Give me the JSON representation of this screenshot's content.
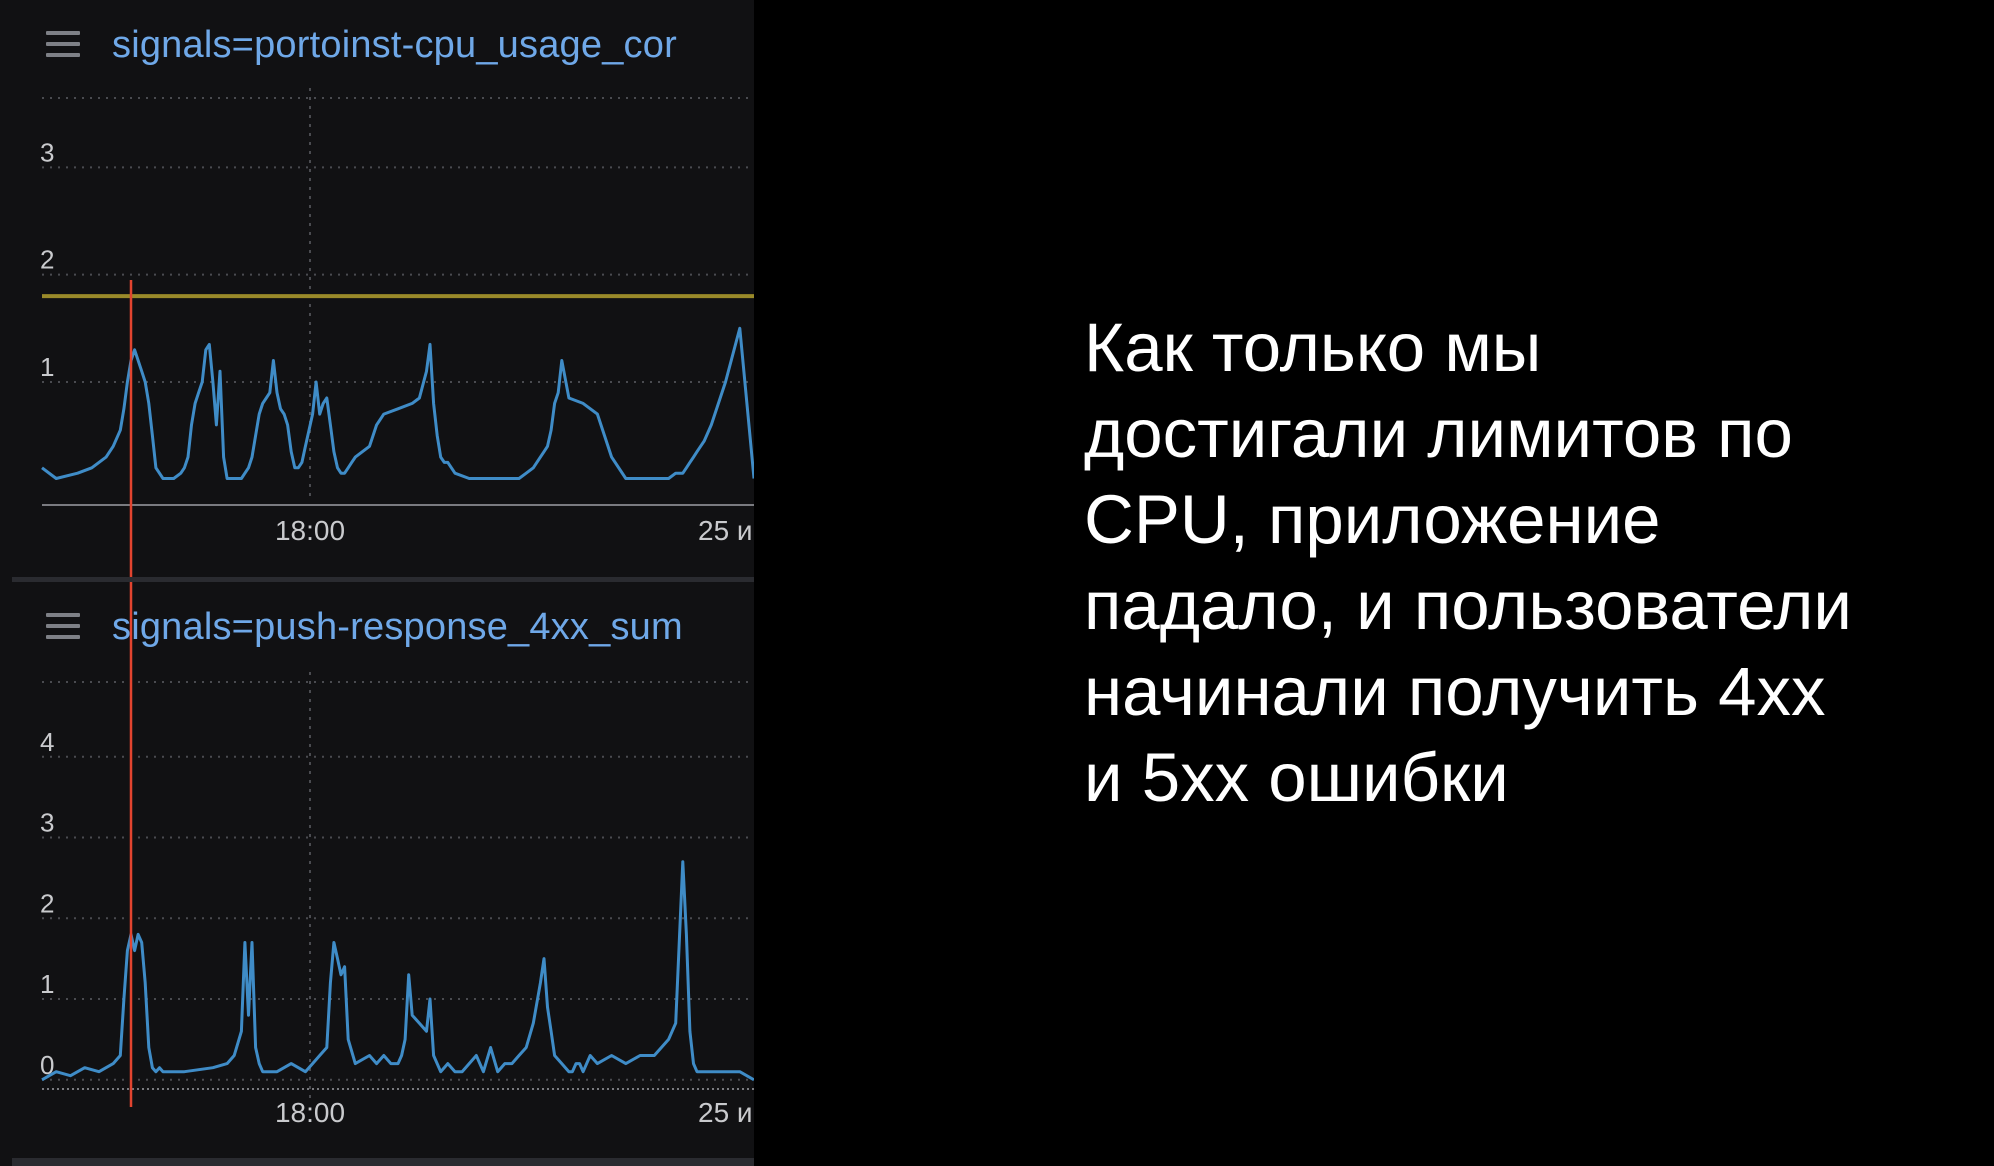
{
  "panels": [
    {
      "title": "signals=portoinst-cpu_usage_cor"
    },
    {
      "title": "signals=push-response_4xx_sum"
    }
  ],
  "chart_data": [
    {
      "type": "line",
      "title": "signals=portoinst-cpu_usage_cor",
      "xlabel": "",
      "ylabel": "",
      "x_tick_labels": [
        "18:00",
        "25 и"
      ],
      "y_ticks": [
        1,
        2,
        3
      ],
      "ylim": [
        -0.1,
        4.0
      ],
      "grid": true,
      "colors": {
        "series": "#3f8cc7",
        "threshold": "#9a8a2a",
        "marker": "#e2442f",
        "grid": "#4a4b50"
      },
      "threshold": 1.8,
      "series": [
        {
          "x": [
            0.0,
            0.02,
            0.05,
            0.07,
            0.09,
            0.1,
            0.11,
            0.115,
            0.12,
            0.125,
            0.13,
            0.14,
            0.145,
            0.15,
            0.155,
            0.16,
            0.17,
            0.175,
            0.18,
            0.185,
            0.195,
            0.2,
            0.205,
            0.21,
            0.215,
            0.22,
            0.225,
            0.23,
            0.235,
            0.24,
            0.245,
            0.25,
            0.255,
            0.26,
            0.265,
            0.27,
            0.275,
            0.28,
            0.285,
            0.29,
            0.295,
            0.3,
            0.305,
            0.31,
            0.315,
            0.32,
            0.325,
            0.33,
            0.335,
            0.34,
            0.345,
            0.35,
            0.355,
            0.36,
            0.365,
            0.37,
            0.375,
            0.38,
            0.385,
            0.39,
            0.395,
            0.4,
            0.405,
            0.41,
            0.415,
            0.42,
            0.425,
            0.43,
            0.435,
            0.44,
            0.45,
            0.46,
            0.47,
            0.48,
            0.5,
            0.52,
            0.53,
            0.54,
            0.545,
            0.55,
            0.555,
            0.56,
            0.565,
            0.57,
            0.575,
            0.58,
            0.6,
            0.62,
            0.65,
            0.67,
            0.68,
            0.69,
            0.7,
            0.705,
            0.71,
            0.715,
            0.72,
            0.725,
            0.73,
            0.74,
            0.76,
            0.78,
            0.8,
            0.82,
            0.85,
            0.87,
            0.88,
            0.89,
            0.9,
            0.905,
            0.91,
            0.915,
            0.92,
            0.925,
            0.93,
            0.94,
            0.96,
            0.98,
            1.0
          ],
          "y": [
            0.2,
            0.1,
            0.15,
            0.2,
            0.3,
            0.4,
            0.55,
            0.75,
            1.0,
            1.2,
            1.3,
            1.1,
            1.0,
            0.8,
            0.5,
            0.2,
            0.1,
            0.1,
            0.1,
            0.1,
            0.15,
            0.2,
            0.3,
            0.6,
            0.8,
            0.9,
            1.0,
            1.3,
            1.35,
            1.0,
            0.6,
            1.1,
            0.3,
            0.1,
            0.1,
            0.1,
            0.1,
            0.1,
            0.15,
            0.2,
            0.3,
            0.5,
            0.7,
            0.8,
            0.85,
            0.9,
            1.2,
            0.9,
            0.75,
            0.7,
            0.6,
            0.35,
            0.2,
            0.2,
            0.25,
            0.4,
            0.55,
            0.7,
            1.0,
            0.7,
            0.8,
            0.85,
            0.6,
            0.35,
            0.2,
            0.15,
            0.15,
            0.2,
            0.25,
            0.3,
            0.35,
            0.4,
            0.6,
            0.7,
            0.75,
            0.8,
            0.85,
            1.1,
            1.35,
            0.8,
            0.5,
            0.3,
            0.25,
            0.25,
            0.2,
            0.15,
            0.1,
            0.1,
            0.1,
            0.1,
            0.15,
            0.2,
            0.3,
            0.35,
            0.4,
            0.55,
            0.8,
            0.9,
            1.2,
            0.85,
            0.8,
            0.7,
            0.3,
            0.1,
            0.1,
            0.1,
            0.1,
            0.15,
            0.15,
            0.2,
            0.25,
            0.3,
            0.35,
            0.4,
            0.45,
            0.6,
            1.0,
            1.5,
            0.1
          ]
        }
      ]
    },
    {
      "type": "line",
      "title": "signals=push-response_4xx_sum",
      "xlabel": "",
      "ylabel": "",
      "x_tick_labels": [
        "18:00",
        "25 и"
      ],
      "y_ticks": [
        0,
        1,
        2,
        3,
        4
      ],
      "ylim": [
        -0.3,
        5.0
      ],
      "grid": true,
      "colors": {
        "series": "#3f8cc7",
        "marker": "#e2442f",
        "grid": "#4a4b50"
      },
      "series": [
        {
          "x": [
            0.0,
            0.02,
            0.04,
            0.06,
            0.08,
            0.1,
            0.11,
            0.115,
            0.12,
            0.125,
            0.13,
            0.135,
            0.14,
            0.145,
            0.15,
            0.155,
            0.16,
            0.165,
            0.17,
            0.18,
            0.2,
            0.24,
            0.26,
            0.27,
            0.28,
            0.285,
            0.29,
            0.295,
            0.3,
            0.305,
            0.31,
            0.315,
            0.32,
            0.33,
            0.35,
            0.37,
            0.38,
            0.39,
            0.4,
            0.405,
            0.41,
            0.415,
            0.42,
            0.425,
            0.43,
            0.44,
            0.46,
            0.47,
            0.48,
            0.49,
            0.5,
            0.505,
            0.51,
            0.515,
            0.52,
            0.53,
            0.54,
            0.545,
            0.55,
            0.56,
            0.57,
            0.58,
            0.59,
            0.6,
            0.61,
            0.62,
            0.63,
            0.64,
            0.65,
            0.66,
            0.67,
            0.68,
            0.69,
            0.7,
            0.705,
            0.71,
            0.715,
            0.72,
            0.73,
            0.74,
            0.745,
            0.75,
            0.755,
            0.76,
            0.77,
            0.78,
            0.8,
            0.82,
            0.84,
            0.86,
            0.87,
            0.88,
            0.89,
            0.9,
            0.905,
            0.91,
            0.915,
            0.92,
            0.925,
            0.93,
            0.94,
            0.96,
            0.98,
            1.0
          ],
          "y": [
            0.0,
            0.1,
            0.05,
            0.15,
            0.1,
            0.2,
            0.3,
            1.0,
            1.6,
            1.8,
            1.6,
            1.8,
            1.7,
            1.2,
            0.4,
            0.15,
            0.1,
            0.15,
            0.1,
            0.1,
            0.1,
            0.15,
            0.2,
            0.3,
            0.6,
            1.7,
            0.8,
            1.7,
            0.4,
            0.2,
            0.1,
            0.1,
            0.1,
            0.1,
            0.2,
            0.1,
            0.2,
            0.3,
            0.4,
            1.2,
            1.7,
            1.5,
            1.3,
            1.4,
            0.5,
            0.2,
            0.3,
            0.2,
            0.3,
            0.2,
            0.2,
            0.3,
            0.5,
            1.3,
            0.8,
            0.7,
            0.6,
            1.0,
            0.3,
            0.1,
            0.2,
            0.1,
            0.1,
            0.2,
            0.3,
            0.1,
            0.4,
            0.1,
            0.2,
            0.2,
            0.3,
            0.4,
            0.7,
            1.2,
            1.5,
            0.9,
            0.6,
            0.3,
            0.2,
            0.1,
            0.1,
            0.2,
            0.2,
            0.1,
            0.3,
            0.2,
            0.3,
            0.2,
            0.3,
            0.3,
            0.4,
            0.5,
            0.7,
            2.7,
            1.8,
            0.6,
            0.2,
            0.1,
            0.1,
            0.1,
            0.1,
            0.1,
            0.1,
            0.0
          ]
        }
      ]
    }
  ],
  "slide_text": {
    "lines": [
      "Как только мы",
      "достигали лимитов по",
      "CPU, приложение",
      "падало, и пользователи",
      "начинали получить 4xx",
      "и 5xx ошибки"
    ]
  }
}
